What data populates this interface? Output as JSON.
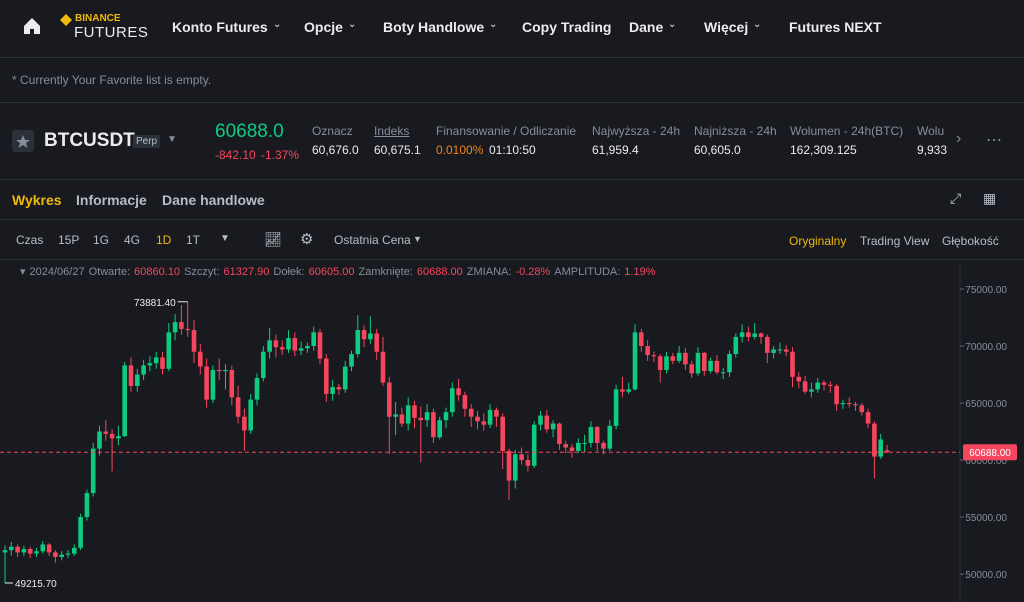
{
  "nav": {
    "logo_top": "BINANCE",
    "logo_bottom": "FUTURES",
    "menu": [
      {
        "label": "Konto Futures",
        "dropdown": true
      },
      {
        "label": "Opcje",
        "dropdown": true
      },
      {
        "label": "Boty Handlowe",
        "dropdown": true
      },
      {
        "label": "Copy Trading",
        "dropdown": false
      },
      {
        "label": "Dane",
        "dropdown": true
      },
      {
        "label": "Więcej",
        "dropdown": true
      },
      {
        "label": "Futures NEXT",
        "dropdown": false
      }
    ]
  },
  "favorites_note": "* Currently Your Favorite list is empty.",
  "ticker": {
    "symbol": "BTCUSDT",
    "tag": "Perp",
    "price": "60688.0",
    "change": "-842.10",
    "change_pct": "-1.37%",
    "stats": [
      {
        "label": "Oznacz",
        "value": "60,676.0"
      },
      {
        "label": "Indeks",
        "value": "60,675.1"
      },
      {
        "label": "Finansowanie / Odliczanie",
        "value": "0.0100%",
        "value2": "01:10:50"
      },
      {
        "label": "Najwyższa - 24h",
        "value": "61,959.4"
      },
      {
        "label": "Najniższa - 24h",
        "value": "60,605.0"
      },
      {
        "label": "Wolumen - 24h(BTC)",
        "value": "162,309.125"
      },
      {
        "label": "Wolu",
        "value": "9,933"
      }
    ]
  },
  "tabs": [
    "Wykres",
    "Informacje",
    "Dane handlowe"
  ],
  "toolbar": {
    "intervals": [
      "Czas",
      "15P",
      "1G",
      "4G",
      "1D",
      "1T"
    ],
    "active_interval": 4,
    "price_type": "Ostatnia Cena",
    "views": [
      "Oryginalny",
      "Trading View",
      "Głębokość"
    ],
    "active_view": 0
  },
  "info_line": {
    "date": "2024/06/27",
    "items": [
      {
        "label": "Otwarte:",
        "value": "60860.10"
      },
      {
        "label": "Szczyt:",
        "value": "61327.90"
      },
      {
        "label": "Dołek:",
        "value": "60605.00"
      },
      {
        "label": "Zamknięte:",
        "value": "60688.00"
      },
      {
        "label": "ZMIANA:",
        "value": "-0.28%"
      },
      {
        "label": "AMPLITUDA:",
        "value": "1.19%"
      }
    ]
  },
  "chart_data": {
    "type": "candlestick",
    "up_color": "#0ecb81",
    "down_color": "#f6465d",
    "grid": false,
    "ylim": [
      47550,
      77370
    ],
    "yticks": [
      {
        "value": 50000,
        "label": "50000.00"
      },
      {
        "value": 55000,
        "label": "55000.00"
      },
      {
        "value": 60000,
        "label": "60000.00"
      },
      {
        "value": 65000,
        "label": "65000.00"
      },
      {
        "value": 70000,
        "label": "70000.00"
      },
      {
        "value": 75000,
        "label": "75000.00"
      }
    ],
    "last_price": {
      "value": 60688,
      "label": "60688.00"
    },
    "max_label": {
      "value": 73881.4,
      "label": "73881.40"
    },
    "min_label": {
      "value": 49215.7,
      "label": "49215.70"
    },
    "candles": [
      [
        51900,
        52500,
        49215.7,
        52100
      ],
      [
        52100,
        52800,
        51600,
        52400
      ],
      [
        52400,
        52600,
        51500,
        51900
      ],
      [
        51900,
        52500,
        51600,
        52200
      ],
      [
        52200,
        52400,
        51400,
        51800
      ],
      [
        51800,
        52300,
        51500,
        52000
      ],
      [
        52000,
        52900,
        51800,
        52600
      ],
      [
        52600,
        52700,
        51600,
        51900
      ],
      [
        51900,
        52100,
        51000,
        51500
      ],
      [
        51500,
        52000,
        51200,
        51700
      ],
      [
        51700,
        52100,
        51400,
        51800
      ],
      [
        51800,
        52600,
        51600,
        52300
      ],
      [
        52300,
        55300,
        52100,
        55000
      ],
      [
        55000,
        57400,
        54700,
        57100
      ],
      [
        57100,
        61500,
        56800,
        61000
      ],
      [
        61000,
        63000,
        60400,
        62500
      ],
      [
        62500,
        63500,
        61700,
        62300
      ],
      [
        62300,
        62700,
        59000,
        61900
      ],
      [
        61900,
        63000,
        61300,
        62100
      ],
      [
        62100,
        68600,
        62000,
        68300
      ],
      [
        68300,
        69000,
        66000,
        66500
      ],
      [
        66500,
        68000,
        66000,
        67500
      ],
      [
        67500,
        68800,
        67000,
        68300
      ],
      [
        68300,
        69100,
        67800,
        68500
      ],
      [
        68500,
        69500,
        68000,
        69000
      ],
      [
        69000,
        69500,
        67500,
        68000
      ],
      [
        68000,
        72000,
        67800,
        71200
      ],
      [
        71200,
        72800,
        70500,
        72100
      ],
      [
        72100,
        73600,
        71000,
        71500
      ],
      [
        71500,
        73881.4,
        70800,
        71400
      ],
      [
        71400,
        72300,
        68500,
        69500
      ],
      [
        69500,
        70200,
        67500,
        68200
      ],
      [
        68200,
        68900,
        64600,
        65300
      ],
      [
        65300,
        68300,
        65000,
        67900
      ],
      [
        67900,
        68900,
        67000,
        67800
      ],
      [
        67800,
        68400,
        66200,
        67900
      ],
      [
        67900,
        68300,
        64800,
        65500
      ],
      [
        65500,
        66500,
        63200,
        63800
      ],
      [
        63800,
        64500,
        60800,
        62600
      ],
      [
        62600,
        65800,
        62300,
        65300
      ],
      [
        65300,
        67600,
        64800,
        67200
      ],
      [
        67200,
        70000,
        66900,
        69500
      ],
      [
        69500,
        71600,
        68900,
        70500
      ],
      [
        70500,
        71000,
        69000,
        69900
      ],
      [
        69900,
        70500,
        69200,
        69700
      ],
      [
        69700,
        71400,
        69400,
        70700
      ],
      [
        70700,
        71200,
        69100,
        69600
      ],
      [
        69600,
        70400,
        69200,
        69800
      ],
      [
        69800,
        70300,
        69400,
        70000
      ],
      [
        70000,
        71700,
        69600,
        71200
      ],
      [
        71200,
        71500,
        68400,
        68900
      ],
      [
        68900,
        69300,
        65100,
        65800
      ],
      [
        65800,
        67000,
        65200,
        66400
      ],
      [
        66400,
        66700,
        65700,
        66200
      ],
      [
        66200,
        68700,
        65900,
        68200
      ],
      [
        68200,
        69600,
        67800,
        69300
      ],
      [
        69300,
        72700,
        69000,
        71400
      ],
      [
        71400,
        71800,
        69900,
        70600
      ],
      [
        70600,
        72600,
        70200,
        71100
      ],
      [
        71100,
        71500,
        68800,
        69500
      ],
      [
        69500,
        70800,
        66500,
        66800
      ],
      [
        66800,
        67300,
        60500,
        63800
      ],
      [
        63800,
        65100,
        62200,
        64000
      ],
      [
        64000,
        64600,
        62900,
        63200
      ],
      [
        63200,
        65500,
        62600,
        64800
      ],
      [
        64800,
        65200,
        62800,
        63700
      ],
      [
        63700,
        64700,
        59800,
        63500
      ],
      [
        63500,
        64900,
        62900,
        64200
      ],
      [
        64200,
        64500,
        61500,
        62000
      ],
      [
        62000,
        63800,
        61800,
        63500
      ],
      [
        63500,
        64600,
        62800,
        64200
      ],
      [
        64200,
        66800,
        63800,
        66300
      ],
      [
        66300,
        67100,
        65200,
        65700
      ],
      [
        65700,
        66000,
        63800,
        64500
      ],
      [
        64500,
        64900,
        62900,
        63800
      ],
      [
        63800,
        64300,
        62700,
        63400
      ],
      [
        63400,
        64100,
        62600,
        63100
      ],
      [
        63100,
        64900,
        62800,
        64400
      ],
      [
        64400,
        64600,
        62900,
        63800
      ],
      [
        63800,
        64100,
        59200,
        60800
      ],
      [
        60800,
        61000,
        56500,
        58200
      ],
      [
        58200,
        60900,
        57500,
        60500
      ],
      [
        60500,
        61100,
        59600,
        60000
      ],
      [
        60000,
        60500,
        59000,
        59500
      ],
      [
        59500,
        63400,
        59300,
        63100
      ],
      [
        63100,
        64300,
        62600,
        63900
      ],
      [
        63900,
        64400,
        62400,
        62700
      ],
      [
        62700,
        63500,
        62000,
        63200
      ],
      [
        63200,
        63300,
        60900,
        61400
      ],
      [
        61400,
        61700,
        60600,
        61100
      ],
      [
        61100,
        61400,
        60200,
        60800
      ],
      [
        60800,
        61900,
        60600,
        61500
      ],
      [
        61500,
        62200,
        60700,
        61500
      ],
      [
        61500,
        63400,
        61100,
        62900
      ],
      [
        62900,
        63000,
        60800,
        61500
      ],
      [
        61500,
        61700,
        60500,
        61000
      ],
      [
        61000,
        63500,
        60800,
        63000
      ],
      [
        63000,
        66600,
        62700,
        66200
      ],
      [
        66200,
        67300,
        65500,
        66000
      ],
      [
        66000,
        66800,
        65800,
        66200
      ],
      [
        66200,
        71900,
        66100,
        71200
      ],
      [
        71200,
        71500,
        69500,
        70000
      ],
      [
        70000,
        70500,
        68700,
        69200
      ],
      [
        69200,
        69500,
        68600,
        69100
      ],
      [
        69100,
        69300,
        66800,
        67900
      ],
      [
        67900,
        69500,
        67600,
        69100
      ],
      [
        69100,
        69400,
        68400,
        68700
      ],
      [
        68700,
        70000,
        68500,
        69400
      ],
      [
        69400,
        69800,
        67900,
        68400
      ],
      [
        68400,
        68700,
        67200,
        67600
      ],
      [
        67600,
        69900,
        67400,
        69400
      ],
      [
        69400,
        69500,
        67400,
        67800
      ],
      [
        67800,
        69000,
        67600,
        68700
      ],
      [
        68700,
        69200,
        67500,
        67700
      ],
      [
        67700,
        68100,
        67100,
        67700
      ],
      [
        67700,
        69600,
        67300,
        69300
      ],
      [
        69300,
        71100,
        69000,
        70800
      ],
      [
        70800,
        71900,
        70300,
        71200
      ],
      [
        71200,
        71700,
        70400,
        70800
      ],
      [
        70800,
        72000,
        70600,
        71100
      ],
      [
        71100,
        71200,
        70200,
        70800
      ],
      [
        70800,
        71000,
        68500,
        69400
      ],
      [
        69400,
        70000,
        68900,
        69700
      ],
      [
        69700,
        70300,
        69300,
        69700
      ],
      [
        69700,
        70100,
        69100,
        69500
      ],
      [
        69500,
        69900,
        66400,
        67300
      ],
      [
        67300,
        67700,
        66300,
        66900
      ],
      [
        66900,
        67400,
        65800,
        66000
      ],
      [
        66000,
        66800,
        65500,
        66200
      ],
      [
        66200,
        67200,
        65900,
        66800
      ],
      [
        66800,
        67000,
        66100,
        66600
      ],
      [
        66600,
        66900,
        65900,
        66500
      ],
      [
        66500,
        66700,
        64300,
        64900
      ],
      [
        64900,
        65300,
        64500,
        65000
      ],
      [
        65000,
        65500,
        64600,
        64900
      ],
      [
        64900,
        65100,
        64300,
        64800
      ],
      [
        64800,
        65000,
        63900,
        64200
      ],
      [
        64200,
        64500,
        62800,
        63200
      ],
      [
        63200,
        63400,
        58400,
        60300
      ],
      [
        60300,
        62300,
        60100,
        61800
      ],
      [
        60860.1,
        61327.9,
        60605,
        60688
      ]
    ]
  }
}
